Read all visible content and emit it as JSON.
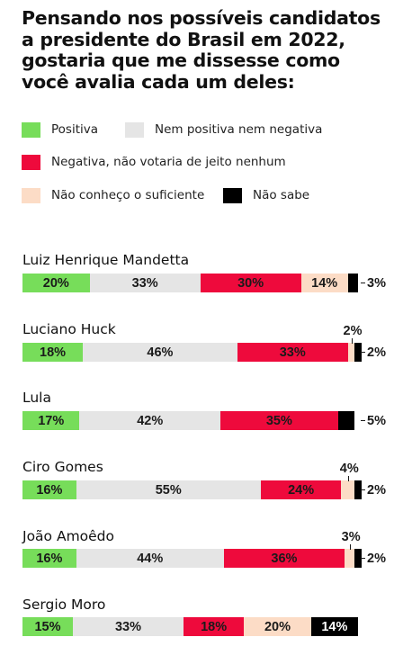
{
  "title": "Pensando nos possíveis candidatos a presidente do Brasil em 2022, gostaria que me dissesse como você avalia cada um deles:",
  "colors": {
    "positive": "#77dd5a",
    "neutral": "#e5e5e5",
    "negative": "#ee0a3c",
    "unknown": "#fcdcc6",
    "dont_know": "#000000"
  },
  "chart_data": {
    "type": "bar",
    "orientation": "horizontal",
    "stacked": true,
    "normalized": true,
    "title": "Pensando nos possíveis candidatos a presidente do Brasil em 2022, gostaria que me dissesse como você avalia cada um deles:",
    "legend": {
      "placement": "top",
      "entries": [
        {
          "key": "positive",
          "label": "Positiva"
        },
        {
          "key": "neutral",
          "label": "Nem positiva nem negativa"
        },
        {
          "key": "negative",
          "label": "Negativa, não votaria de jeito nenhum"
        },
        {
          "key": "unknown",
          "label": "Não conheço o suficiente"
        },
        {
          "key": "dont_know",
          "label": "Não sabe"
        }
      ]
    },
    "categories": [
      "Luiz Henrique Mandetta",
      "Luciano Huck",
      "Lula",
      "Ciro Gomes",
      "João Amoêdo",
      "Sergio Moro"
    ],
    "series": [
      {
        "name": "Positiva",
        "key": "positive",
        "values": [
          20,
          18,
          17,
          16,
          16,
          15
        ],
        "labels": [
          "20%",
          "18%",
          "17%",
          "16%",
          "16%",
          "15%"
        ]
      },
      {
        "name": "Nem positiva nem negativa",
        "key": "neutral",
        "values": [
          33,
          46,
          42,
          55,
          44,
          33
        ],
        "labels": [
          "33%",
          "46%",
          "42%",
          "55%",
          "44%",
          "33%"
        ]
      },
      {
        "name": "Negativa, não votaria de jeito nenhum",
        "key": "negative",
        "values": [
          30,
          33,
          35,
          24,
          36,
          18
        ],
        "labels": [
          "30%",
          "33%",
          "35%",
          "24%",
          "36%",
          "18%"
        ]
      },
      {
        "name": "Não conheço o suficiente",
        "key": "unknown",
        "values": [
          14,
          2,
          0,
          4,
          3,
          20
        ],
        "labels": [
          "14%",
          "2%",
          "",
          "4%",
          "3%",
          "20%"
        ]
      },
      {
        "name": "Não sabe",
        "key": "dont_know",
        "values": [
          3,
          2,
          5,
          2,
          2,
          14
        ],
        "labels": [
          "3%",
          "2%",
          "5%",
          "2%",
          "2%",
          "14%"
        ]
      }
    ]
  }
}
